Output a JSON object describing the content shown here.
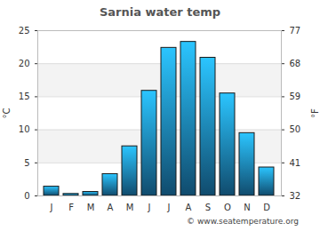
{
  "chart_data": {
    "type": "bar",
    "title": "Sarnia water temp",
    "categories": [
      "J",
      "F",
      "M",
      "A",
      "M",
      "J",
      "J",
      "A",
      "S",
      "O",
      "N",
      "D"
    ],
    "values": [
      1.4,
      0.3,
      0.6,
      3.3,
      7.5,
      15.9,
      22.4,
      23.3,
      20.9,
      15.5,
      9.5,
      4.3
    ],
    "color": "#1f8fcf",
    "y_label": "°C",
    "ylim": [
      0,
      25
    ],
    "yticks": [
      0,
      5,
      10,
      15,
      20,
      25
    ],
    "y2_label": "°F",
    "y2lim": [
      32,
      77
    ],
    "y2ticks": [
      32,
      41,
      50,
      59,
      68,
      77
    ],
    "grid": true,
    "caption": "© www.seatemperature.org"
  }
}
